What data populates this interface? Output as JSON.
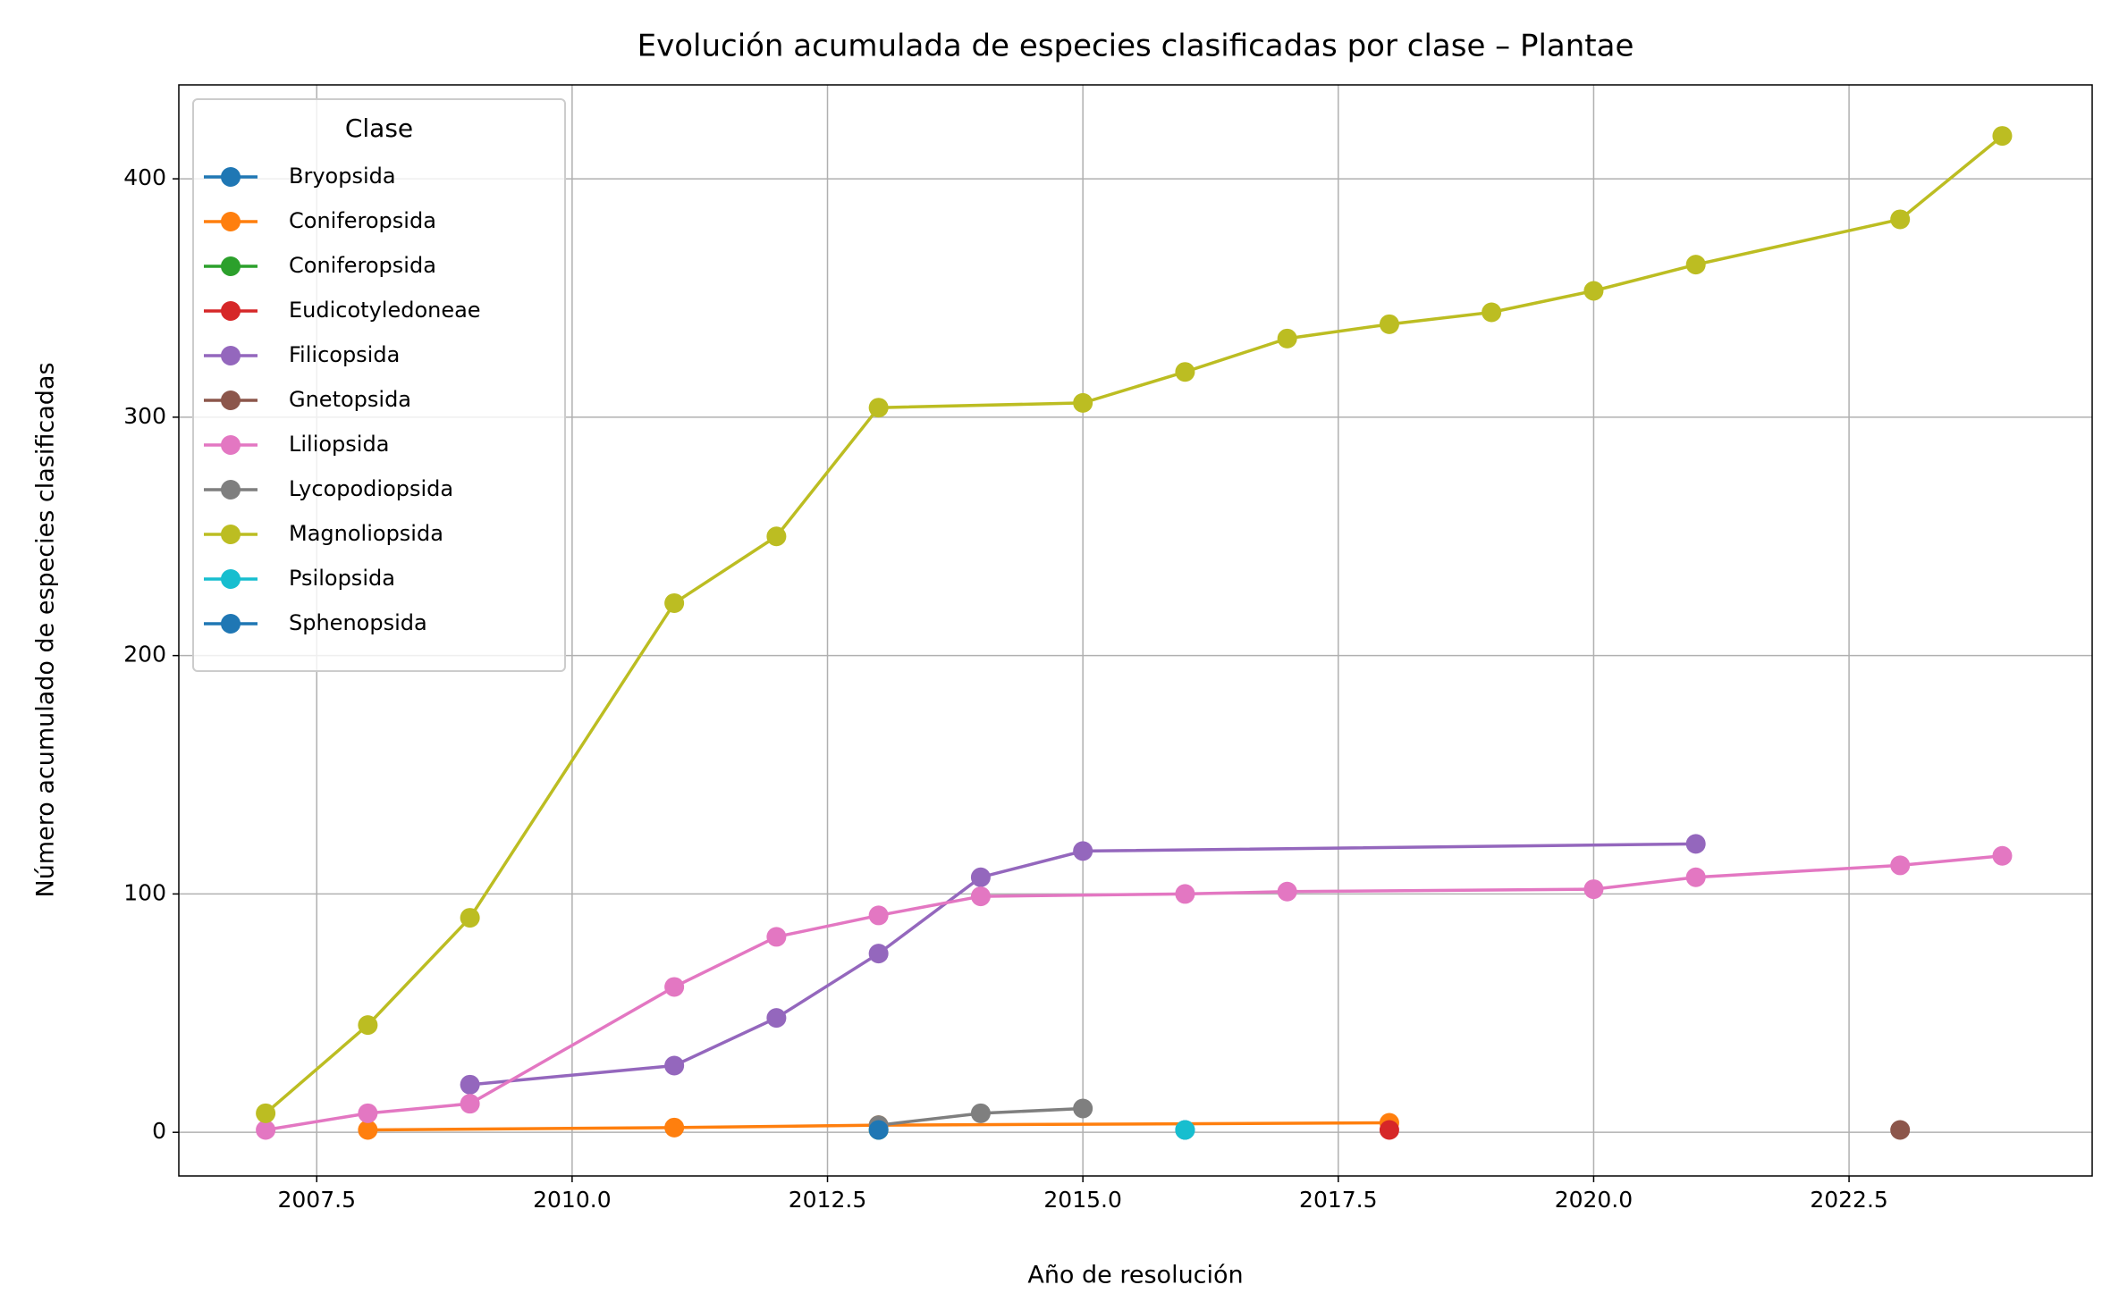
{
  "chart_data": {
    "type": "line",
    "title": "Evolución acumulada de especies clasificadas por clase – Plantae",
    "x_label": "Año de resolución",
    "y_label": "Número acumulado de especies clasificadas",
    "legend_title": "Clase",
    "legend_position": "upper left",
    "grid": true,
    "xlim": [
      2006.15,
      2024.88
    ],
    "ylim": [
      -18.3,
      439.4
    ],
    "xticks": [
      {
        "value": 2007.5,
        "label": "2007.5"
      },
      {
        "value": 2010,
        "label": "2010.0"
      },
      {
        "value": 2012.5,
        "label": "2012.5"
      },
      {
        "value": 2015,
        "label": "2015.0"
      },
      {
        "value": 2017.5,
        "label": "2017.5"
      },
      {
        "value": 2020,
        "label": "2020.0"
      },
      {
        "value": 2022.5,
        "label": "2022.5"
      }
    ],
    "yticks": [
      0,
      100,
      200,
      300,
      400
    ],
    "series": [
      {
        "name": "Bryopsida",
        "color": "#1f77b4",
        "x": [
          2016
        ],
        "values": [
          1
        ]
      },
      {
        "name": "Coniferopsida",
        "color": "#ff7f0e",
        "x": [
          2008,
          2011,
          2013,
          2018
        ],
        "values": [
          1,
          2,
          3,
          4
        ]
      },
      {
        "name": "Coniferopsida",
        "color": "#2ca02c",
        "x": [
          2013
        ],
        "values": [
          1
        ]
      },
      {
        "name": "Eudicotyledoneae",
        "color": "#d62728",
        "x": [
          2018
        ],
        "values": [
          1
        ]
      },
      {
        "name": "Filicopsida",
        "color": "#9467bd",
        "x": [
          2009,
          2011,
          2012,
          2013,
          2014,
          2015,
          2021
        ],
        "values": [
          20,
          28,
          48,
          75,
          107,
          118,
          121
        ]
      },
      {
        "name": "Gnetopsida",
        "color": "#8c564b",
        "x": [
          2023
        ],
        "values": [
          1
        ]
      },
      {
        "name": "Liliopsida",
        "color": "#e377c2",
        "x": [
          2007,
          2008,
          2009,
          2011,
          2012,
          2013,
          2014,
          2016,
          2017,
          2020,
          2021,
          2023,
          2024
        ],
        "values": [
          1,
          8,
          12,
          61,
          82,
          91,
          99,
          100,
          101,
          102,
          107,
          112,
          116
        ]
      },
      {
        "name": "Lycopodiopsida",
        "color": "#7f7f7f",
        "x": [
          2013,
          2014,
          2015
        ],
        "values": [
          3,
          8,
          10
        ]
      },
      {
        "name": "Magnoliopsida",
        "color": "#bcbd22",
        "x": [
          2007,
          2008,
          2009,
          2011,
          2012,
          2013,
          2015,
          2016,
          2017,
          2018,
          2019,
          2020,
          2021,
          2023,
          2024
        ],
        "values": [
          8,
          45,
          90,
          222,
          250,
          304,
          306,
          319,
          333,
          339,
          344,
          353,
          364,
          383,
          418
        ]
      },
      {
        "name": "Psilopsida",
        "color": "#17becf",
        "x": [
          2016
        ],
        "values": [
          1
        ]
      },
      {
        "name": "Sphenopsida",
        "color": "#1f77b4",
        "x": [
          2013
        ],
        "values": [
          1
        ]
      }
    ]
  }
}
